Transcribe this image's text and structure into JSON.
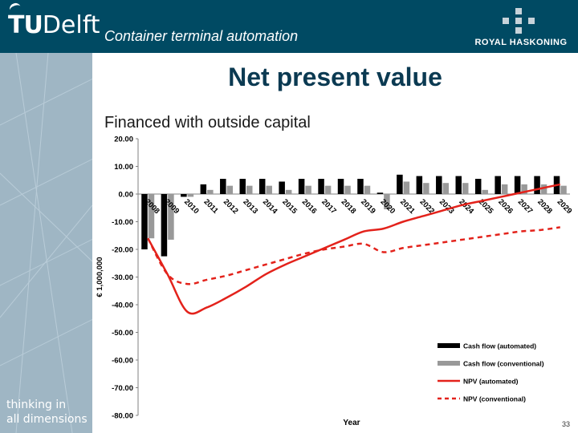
{
  "header": {
    "logo_tu": "TU",
    "logo_delft": "Delft",
    "title": "Container terminal automation",
    "partner_logo": "ROYAL HASKONING"
  },
  "sidebar": {
    "tagline_line1": "thinking in",
    "tagline_line2": "all dimensions"
  },
  "slide": {
    "title": "Net present value",
    "subtitle": "Financed with outside capital",
    "page_number": "33"
  },
  "colors": {
    "header_bg": "#004a63",
    "sidebar_bg": "#9fb6c4",
    "automated": "#000000",
    "conventional": "#999999",
    "npv_line": "#e3221b"
  },
  "chart_data": {
    "type": "bar",
    "title": "",
    "xlabel": "Year",
    "ylabel": "€ 1,000,000",
    "ylim": [
      -80,
      20
    ],
    "yticks": [
      "20.00",
      "10.00",
      "0.00",
      "-10.00",
      "-20.00",
      "-30.00",
      "-40.00",
      "-50.00",
      "-60.00",
      "-70.00",
      "-80.00"
    ],
    "categories": [
      "2008",
      "2009",
      "2010",
      "2011",
      "2012",
      "2013",
      "2014",
      "2015",
      "2016",
      "2017",
      "2018",
      "2019",
      "2020",
      "2021",
      "2022",
      "2023",
      "2024",
      "2025",
      "2026",
      "2027",
      "2028",
      "2029"
    ],
    "series": [
      {
        "name": "Cash flow (automated)",
        "kind": "bar",
        "color": "#000000",
        "values": [
          -20.0,
          -22.5,
          -1.0,
          3.5,
          5.5,
          5.5,
          5.5,
          4.5,
          5.5,
          5.5,
          5.5,
          5.5,
          0.5,
          7.0,
          6.5,
          6.5,
          6.5,
          5.5,
          6.5,
          6.5,
          6.5,
          6.5
        ]
      },
      {
        "name": "Cash flow (conventional)",
        "kind": "bar",
        "color": "#999999",
        "values": [
          -16.0,
          -16.5,
          -1.0,
          1.5,
          3.0,
          3.0,
          3.0,
          1.5,
          3.0,
          3.0,
          3.0,
          3.0,
          -5.5,
          4.5,
          4.0,
          4.0,
          4.0,
          1.5,
          3.5,
          3.5,
          3.5,
          3.0
        ]
      },
      {
        "name": "NPV (automated)",
        "kind": "line",
        "color": "#e3221b",
        "dash": false,
        "values": [
          -16.0,
          -29.0,
          -42.5,
          -41.0,
          -37.5,
          -33.5,
          -29.0,
          -25.5,
          -22.5,
          -19.5,
          -16.5,
          -13.5,
          -12.5,
          -10.0,
          -8.0,
          -6.0,
          -4.0,
          -2.5,
          -1.0,
          0.5,
          2.0,
          3.5
        ]
      },
      {
        "name": "NPV (conventional)",
        "kind": "line",
        "color": "#e3221b",
        "dash": true,
        "values": [
          -16.0,
          -29.0,
          -32.5,
          -31.0,
          -29.5,
          -27.5,
          -25.5,
          -23.5,
          -21.5,
          -20.0,
          -19.0,
          -18.0,
          -21.0,
          -19.5,
          -18.5,
          -17.5,
          -16.5,
          -15.5,
          -14.5,
          -13.5,
          -13.0,
          -12.0
        ]
      }
    ],
    "legend_position": "bottom-right",
    "grid": false
  }
}
